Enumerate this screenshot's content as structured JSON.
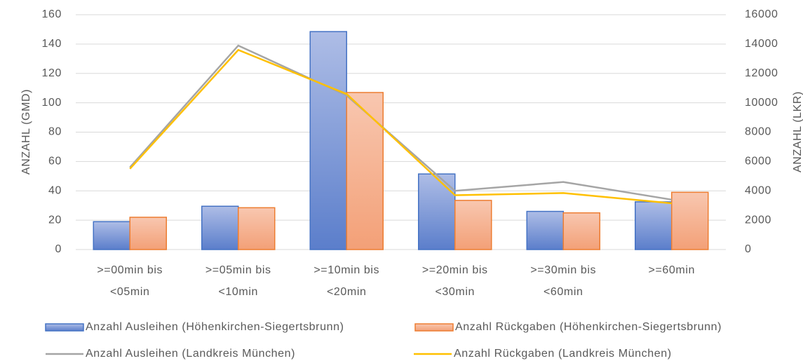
{
  "chart_data": {
    "type": "bar-line",
    "categories": [
      ">=00min bis <05min",
      ">=05min bis <10min",
      ">=10min bis <20min",
      ">=20min bis <30min",
      ">=30min bis <60min",
      ">=60min"
    ],
    "ylabel": "ANZAHL (GMD)",
    "y2label": "ANZAHL (LKR)",
    "ylim": [
      0,
      160
    ],
    "yticks": [
      0,
      20,
      40,
      60,
      80,
      100,
      120,
      140,
      160
    ],
    "y2lim": [
      0,
      16000
    ],
    "y2ticks": [
      0,
      2000,
      4000,
      6000,
      8000,
      10000,
      12000,
      14000,
      16000
    ],
    "grid": true,
    "legend": "bottom",
    "series": [
      {
        "name": "Anzahl Ausleihen (Höhenkirchen-Siegertsbrunn)",
        "type": "bar",
        "color": "#4472c4",
        "values": [
          19,
          29.5,
          148.5,
          51.5,
          26,
          32.5
        ]
      },
      {
        "name": "Anzahl Rückgaben (Höhenkirchen-Siegertsbrunn)",
        "type": "bar",
        "color": "#ed7d31",
        "values": [
          22,
          28.5,
          107,
          33.5,
          25,
          39
        ]
      },
      {
        "name": "Anzahl Ausleihen (Landkreis München)",
        "type": "line",
        "axis": "y2",
        "color": "#a5a5a5",
        "values": [
          5600,
          13900,
          10500,
          4000,
          4600,
          3400
        ]
      },
      {
        "name": "Anzahl Rückgaben (Landkreis München)",
        "type": "line",
        "axis": "y2",
        "color": "#ffc000",
        "values": [
          5500,
          13600,
          10600,
          3700,
          3850,
          3150
        ]
      }
    ]
  }
}
